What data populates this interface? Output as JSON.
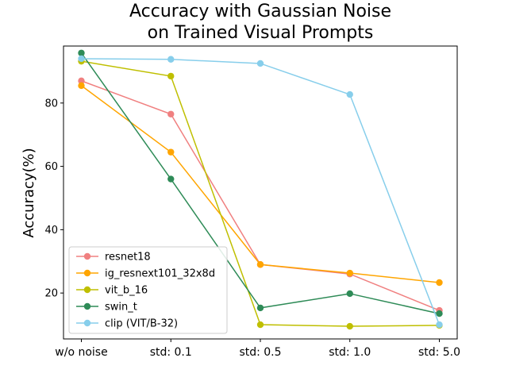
{
  "chart_data": {
    "type": "line",
    "title_lines": [
      "Accuracy with Gaussian Noise",
      "on Trained Visual Prompts"
    ],
    "ylabel": "Accuracy(%)",
    "xlabel": "",
    "categories": [
      "w/o noise",
      "std: 0.1",
      "std: 0.5",
      "std: 1.0",
      "std: 5.0"
    ],
    "ylim": [
      5.5,
      98
    ],
    "yticks": [
      20,
      40,
      60,
      80
    ],
    "grid": false,
    "legend_position": "lower-left",
    "series": [
      {
        "name": "resnet18",
        "color": "#f08080",
        "values": [
          87,
          76.5,
          29,
          26,
          14.5
        ]
      },
      {
        "name": "ig_resnext101_32x8d",
        "color": "#ffa500",
        "values": [
          85.5,
          64.5,
          29,
          26.3,
          23.3
        ]
      },
      {
        "name": "vit_b_16",
        "color": "#bfbf00",
        "values": [
          93.2,
          88.5,
          10,
          9.5,
          9.8
        ]
      },
      {
        "name": "swin_t",
        "color": "#2e8b57",
        "values": [
          95.8,
          56,
          15.3,
          19.8,
          13.5
        ]
      },
      {
        "name": "clip (VIT/B-32)",
        "color": "#87ceeb",
        "values": [
          94,
          93.8,
          92.5,
          82.7,
          10
        ]
      }
    ]
  }
}
